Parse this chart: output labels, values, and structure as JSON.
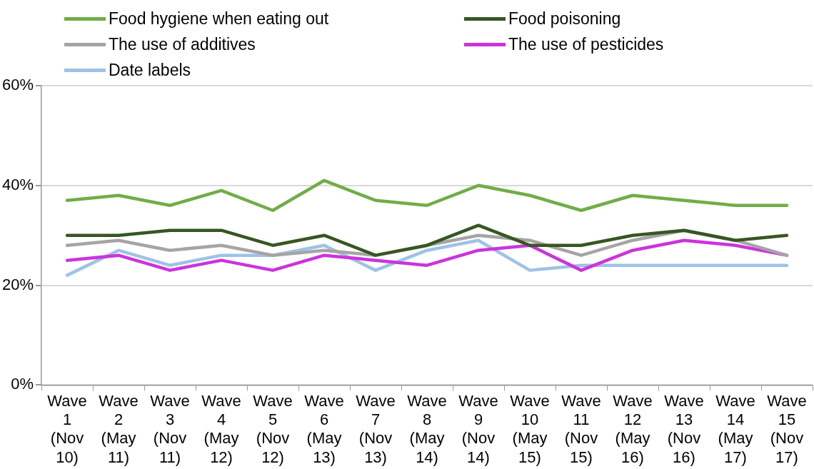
{
  "chart_data": {
    "type": "line",
    "categories": [
      "Wave 1 (Nov 10)",
      "Wave 2 (May 11)",
      "Wave 3 (Nov 11)",
      "Wave 4 (May 12)",
      "Wave 5 (Nov 12)",
      "Wave 6 (May 13)",
      "Wave 7 (Nov 13)",
      "Wave 8 (May 14)",
      "Wave 9 (Nov 14)",
      "Wave 10 (May 15)",
      "Wave 11 (Nov 15)",
      "Wave 12 (May 16)",
      "Wave 13 (Nov 16)",
      "Wave 14 (May 17)",
      "Wave 15 (Nov 17)"
    ],
    "series": [
      {
        "name": "Food hygiene when eating out",
        "color": "#70ad47",
        "values": [
          37,
          38,
          36,
          39,
          35,
          41,
          37,
          36,
          40,
          38,
          35,
          38,
          37,
          36,
          36
        ]
      },
      {
        "name": "Food poisoning",
        "color": "#375623",
        "values": [
          30,
          30,
          31,
          31,
          28,
          30,
          26,
          28,
          32,
          28,
          28,
          30,
          31,
          29,
          30
        ]
      },
      {
        "name": "The use of additives",
        "color": "#a5a5a5",
        "values": [
          28,
          29,
          27,
          28,
          26,
          27,
          26,
          28,
          30,
          29,
          26,
          29,
          31,
          29,
          26
        ]
      },
      {
        "name": "The use of pesticides",
        "color": "#cc33dd",
        "values": [
          25,
          26,
          23,
          25,
          23,
          26,
          25,
          24,
          27,
          28,
          23,
          27,
          29,
          28,
          26
        ]
      },
      {
        "name": "Date labels",
        "color": "#9dc3e6",
        "values": [
          22,
          27,
          24,
          26,
          26,
          28,
          23,
          27,
          29,
          23,
          24,
          24,
          24,
          24,
          24
        ]
      }
    ],
    "ylim": [
      0,
      60
    ],
    "yticks": [
      {
        "value": 0,
        "label": "0%"
      },
      {
        "value": 20,
        "label": "20%"
      },
      {
        "value": 40,
        "label": "40%"
      },
      {
        "value": 60,
        "label": "60%"
      }
    ],
    "grid": "y",
    "legend": "top",
    "marker": "none",
    "line_style": "solid"
  }
}
